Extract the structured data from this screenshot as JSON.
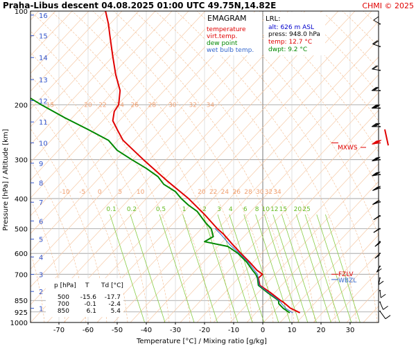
{
  "header": {
    "title": "Praha-Libus   descent   04.08.2025 01:00 UTC  49.75N,14.82E",
    "credit": "CHMI © 2025"
  },
  "legend": {
    "title": "EMAGRAM",
    "items": [
      {
        "label": "temperature",
        "color": "#e00000"
      },
      {
        "label": "virt.temp.",
        "color": "#e00000"
      },
      {
        "label": "dew point",
        "color": "#008800"
      },
      {
        "label": "wet bulb temp.",
        "color": "#3366cc"
      }
    ]
  },
  "lrl": {
    "title": "LRL:",
    "lines": [
      {
        "text": "alt: 626 m ASL",
        "color": "#0000cc"
      },
      {
        "text": "press: 948.0 hPa",
        "color": "#000000"
      },
      {
        "text": "temp: 12.7 °C",
        "color": "#e00000"
      },
      {
        "text": "dwpt: 9.2 °C",
        "color": "#008800"
      }
    ]
  },
  "mini_table": {
    "header": [
      "p [hPa]",
      "T",
      "Td [°C]"
    ],
    "rows": [
      [
        "500",
        "-15.6",
        "-17.7"
      ],
      [
        "700",
        "-0.1",
        "-2.4"
      ],
      [
        "850",
        "6.1",
        "5.4"
      ]
    ]
  },
  "markers": {
    "mxws": "MXWS",
    "fzlv": "FZLV",
    "wbzl": "WBZL"
  },
  "chart_data": {
    "type": "line",
    "title": "Praha-Libus   descent   04.08.2025 01:00 UTC  49.75N,14.82E",
    "xlabel": "Temperature [°C]  /  Mixing ratio [g/kg]",
    "ylabel": "Pressure [hPa]  /  Altitude [km]",
    "xlim": [
      -80,
      40
    ],
    "ylim": [
      1000,
      100
    ],
    "y_scale": "log",
    "x_ticks": [
      -70,
      -60,
      -50,
      -40,
      -30,
      -20,
      -10,
      0,
      10,
      20,
      30
    ],
    "pressure_ticks": [
      100,
      200,
      300,
      400,
      500,
      600,
      700,
      850,
      925,
      1000
    ],
    "altitude_ticks": [
      {
        "km": "1",
        "p": 900
      },
      {
        "km": "2",
        "p": 795
      },
      {
        "km": "3",
        "p": 701
      },
      {
        "km": "4",
        "p": 616
      },
      {
        "km": "5",
        "p": 540
      },
      {
        "km": "6",
        "p": 472
      },
      {
        "km": "7",
        "p": 411
      },
      {
        "km": "8",
        "p": 356
      },
      {
        "km": "9",
        "p": 308
      },
      {
        "km": "10",
        "p": 265
      },
      {
        "km": "11",
        "p": 227
      },
      {
        "km": "12",
        "p": 194
      },
      {
        "km": "13",
        "p": 166
      },
      {
        "km": "14",
        "p": 141
      },
      {
        "km": "15",
        "p": 120
      },
      {
        "km": "16",
        "p": 103
      }
    ],
    "mixing_ratio_labels_top": {
      "p": 200,
      "labels": [
        {
          "text": "15",
          "t": -73
        },
        {
          "text": "20",
          "t": -60
        },
        {
          "text": "22",
          "t": -55
        },
        {
          "text": "24",
          "t": -49
        },
        {
          "text": "26",
          "t": -44
        },
        {
          "text": "28",
          "t": -38
        },
        {
          "text": "30",
          "t": -31
        },
        {
          "text": "32",
          "t": -24
        },
        {
          "text": "34",
          "t": -18
        }
      ]
    },
    "mixing_ratio_labels_mid": {
      "p": 380,
      "labels": [
        {
          "text": "-10",
          "t": -68
        },
        {
          "text": "-5",
          "t": -62
        },
        {
          "text": "0",
          "t": -56
        },
        {
          "text": "5",
          "t": -49
        },
        {
          "text": "10",
          "t": -42
        },
        {
          "text": "20",
          "t": -21
        },
        {
          "text": "22",
          "t": -17
        },
        {
          "text": "24",
          "t": -13
        },
        {
          "text": "26",
          "t": -9
        },
        {
          "text": "28",
          "t": -5
        },
        {
          "text": "30",
          "t": -1
        },
        {
          "text": "32",
          "t": 2
        },
        {
          "text": "34",
          "t": 5
        }
      ]
    },
    "mixing_ratio_labels_green": {
      "p": 432,
      "labels": [
        {
          "text": "0.1",
          "t": -52
        },
        {
          "text": "0.2",
          "t": -45
        },
        {
          "text": "0.5",
          "t": -35
        },
        {
          "text": "1",
          "t": -27
        },
        {
          "text": "2",
          "t": -20
        },
        {
          "text": "3",
          "t": -15
        },
        {
          "text": "4",
          "t": -11
        },
        {
          "text": "6",
          "t": -6
        },
        {
          "text": "8",
          "t": -2
        },
        {
          "text": "10",
          "t": 1
        },
        {
          "text": "12",
          "t": 4
        },
        {
          "text": "15",
          "t": 7
        },
        {
          "text": "20",
          "t": 12
        },
        {
          "text": "25",
          "t": 15
        }
      ]
    },
    "series": [
      {
        "name": "temperature",
        "color": "#e00000",
        "points": [
          [
            930,
            12.7
          ],
          [
            900,
            9.5
          ],
          [
            860,
            7.0
          ],
          [
            850,
            6.1
          ],
          [
            800,
            2.5
          ],
          [
            760,
            -1.0
          ],
          [
            720,
            -1.5
          ],
          [
            700,
            -0.1
          ],
          [
            680,
            -2.0
          ],
          [
            640,
            -4.5
          ],
          [
            600,
            -7.5
          ],
          [
            560,
            -10.5
          ],
          [
            520,
            -13.5
          ],
          [
            500,
            -15.6
          ],
          [
            450,
            -20.0
          ],
          [
            400,
            -25.5
          ],
          [
            350,
            -33.0
          ],
          [
            300,
            -41.0
          ],
          [
            260,
            -48.0
          ],
          [
            240,
            -50.0
          ],
          [
            225,
            -51.5
          ],
          [
            210,
            -51.0
          ],
          [
            200,
            -49.5
          ],
          [
            180,
            -49.0
          ],
          [
            160,
            -50.5
          ],
          [
            140,
            -51.5
          ],
          [
            120,
            -52.5
          ],
          [
            110,
            -53.0
          ],
          [
            100,
            -54.0
          ]
        ]
      },
      {
        "name": "dew point",
        "color": "#008800",
        "points": [
          [
            930,
            9.2
          ],
          [
            900,
            7.0
          ],
          [
            870,
            5.5
          ],
          [
            850,
            5.4
          ],
          [
            800,
            1.5
          ],
          [
            760,
            -1.5
          ],
          [
            720,
            -1.8
          ],
          [
            700,
            -2.4
          ],
          [
            680,
            -3.5
          ],
          [
            640,
            -5.5
          ],
          [
            600,
            -8.5
          ],
          [
            570,
            -12.0
          ],
          [
            550,
            -20.0
          ],
          [
            530,
            -17.0
          ],
          [
            500,
            -17.7
          ],
          [
            480,
            -19.5
          ],
          [
            460,
            -21.0
          ],
          [
            440,
            -22.5
          ],
          [
            420,
            -25.5
          ],
          [
            400,
            -28.0
          ],
          [
            380,
            -30.0
          ],
          [
            360,
            -34.0
          ],
          [
            340,
            -36.0
          ],
          [
            320,
            -40.0
          ],
          [
            300,
            -45.0
          ],
          [
            280,
            -50.0
          ],
          [
            260,
            -53.0
          ],
          [
            240,
            -60.0
          ],
          [
            220,
            -68.0
          ],
          [
            200,
            -76.0
          ],
          [
            190,
            -80.0
          ]
        ]
      },
      {
        "name": "wet bulb temp.",
        "color": "#3366cc",
        "points": [
          [
            930,
            10.2
          ],
          [
            900,
            7.8
          ],
          [
            850,
            5.6
          ],
          [
            800,
            1.8
          ],
          [
            760,
            -1.2
          ],
          [
            700,
            -1.8
          ],
          [
            640,
            -5.0
          ],
          [
            600,
            -8.0
          ],
          [
            560,
            -11.5
          ],
          [
            520,
            -14.5
          ],
          [
            500,
            -16.3
          ]
        ]
      }
    ],
    "winds": [
      {
        "p": 110,
        "dir": 300,
        "spd": 10
      },
      {
        "p": 130,
        "dir": 290,
        "spd": 15
      },
      {
        "p": 155,
        "dir": 280,
        "spd": 20
      },
      {
        "p": 180,
        "dir": 270,
        "spd": 25
      },
      {
        "p": 205,
        "dir": 270,
        "spd": 35
      },
      {
        "p": 235,
        "dir": 270,
        "spd": 40
      },
      {
        "p": 265,
        "dir": 260,
        "spd": 45
      },
      {
        "p": 300,
        "dir": 260,
        "spd": 40
      },
      {
        "p": 335,
        "dir": 260,
        "spd": 35
      },
      {
        "p": 370,
        "dir": 250,
        "spd": 35
      },
      {
        "p": 410,
        "dir": 250,
        "spd": 30
      },
      {
        "p": 455,
        "dir": 240,
        "spd": 25
      },
      {
        "p": 500,
        "dir": 240,
        "spd": 20
      },
      {
        "p": 550,
        "dir": 230,
        "spd": 15
      },
      {
        "p": 600,
        "dir": 230,
        "spd": 10
      },
      {
        "p": 660,
        "dir": 220,
        "spd": 10
      },
      {
        "p": 720,
        "dir": 210,
        "spd": 10
      },
      {
        "p": 790,
        "dir": 200,
        "spd": 5
      },
      {
        "p": 860,
        "dir": 190,
        "spd": 5
      },
      {
        "p": 920,
        "dir": 180,
        "spd": 5
      }
    ],
    "level_markers": [
      {
        "label": "MXWS",
        "p": 265,
        "color": "#e00000"
      },
      {
        "label": "FZLV",
        "p": 700,
        "color": "#e00000"
      },
      {
        "label": "WBZL",
        "p": 728,
        "color": "#3366cc"
      }
    ]
  }
}
